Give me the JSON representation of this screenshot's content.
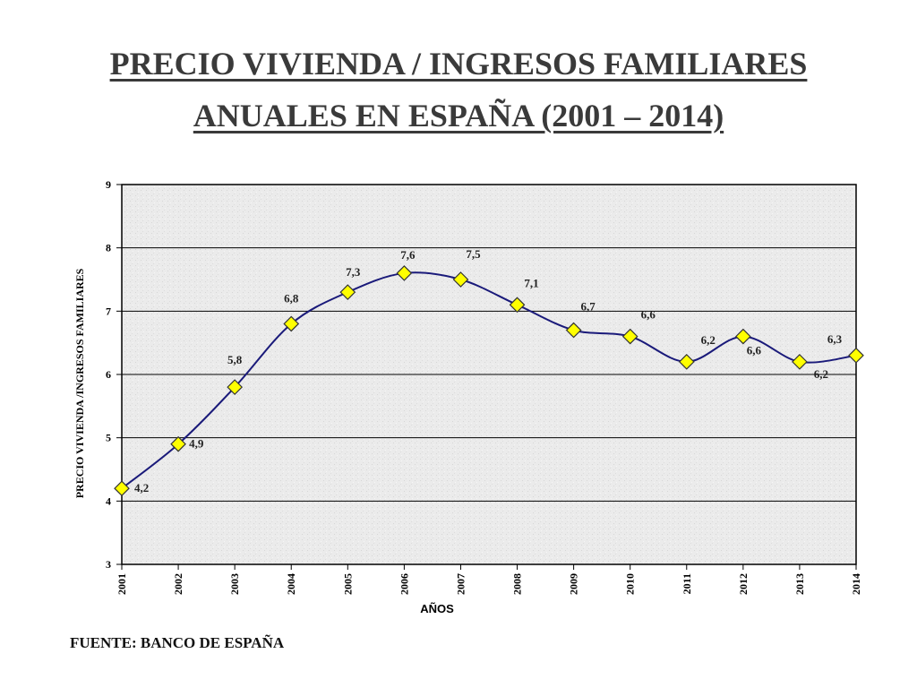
{
  "header": {
    "title_line1": "PRECIO VIVIENDA / INGRESOS FAMILIARES",
    "title_line2": "ANUALES EN ESPAÑA (2001 – 2014)"
  },
  "source": "FUENTE: BANCO DE ESPAÑA",
  "chart_data": {
    "type": "line",
    "title": "PRECIO VIVIENDA / INGRESOS FAMILIARES ANUALES EN ESPAÑA (2001 – 2014)",
    "xlabel": "AÑOS",
    "ylabel": "PRECIO VIVIENDA /INGRESOS FAMILIARES",
    "ylim": [
      3,
      9
    ],
    "yticks": [
      "3",
      "4",
      "5",
      "6",
      "7",
      "8",
      "9"
    ],
    "grid": true,
    "legend": "none",
    "categories": [
      "2001",
      "2002",
      "2003",
      "2004",
      "2005",
      "2006",
      "2007",
      "2008",
      "2009",
      "2010",
      "2011",
      "2012",
      "2013",
      "2014"
    ],
    "series": [
      {
        "values": [
          4.2,
          4.9,
          5.8,
          6.8,
          7.3,
          7.6,
          7.5,
          7.1,
          6.7,
          6.6,
          6.2,
          6.6,
          6.2,
          6.3
        ],
        "labels": [
          "4,2",
          "4,9",
          "5,8",
          "6,8",
          "7,3",
          "7,6",
          "7,5",
          "7,1",
          "6,7",
          "6,6",
          "6,2",
          "6,6",
          "6,2",
          "6,3"
        ]
      }
    ],
    "colors": {
      "line": "#1a1a7a",
      "marker_fill": "#ffff00",
      "marker_stroke": "#333333",
      "plot_background": "#ebebeb",
      "gridline": "#000000"
    }
  }
}
